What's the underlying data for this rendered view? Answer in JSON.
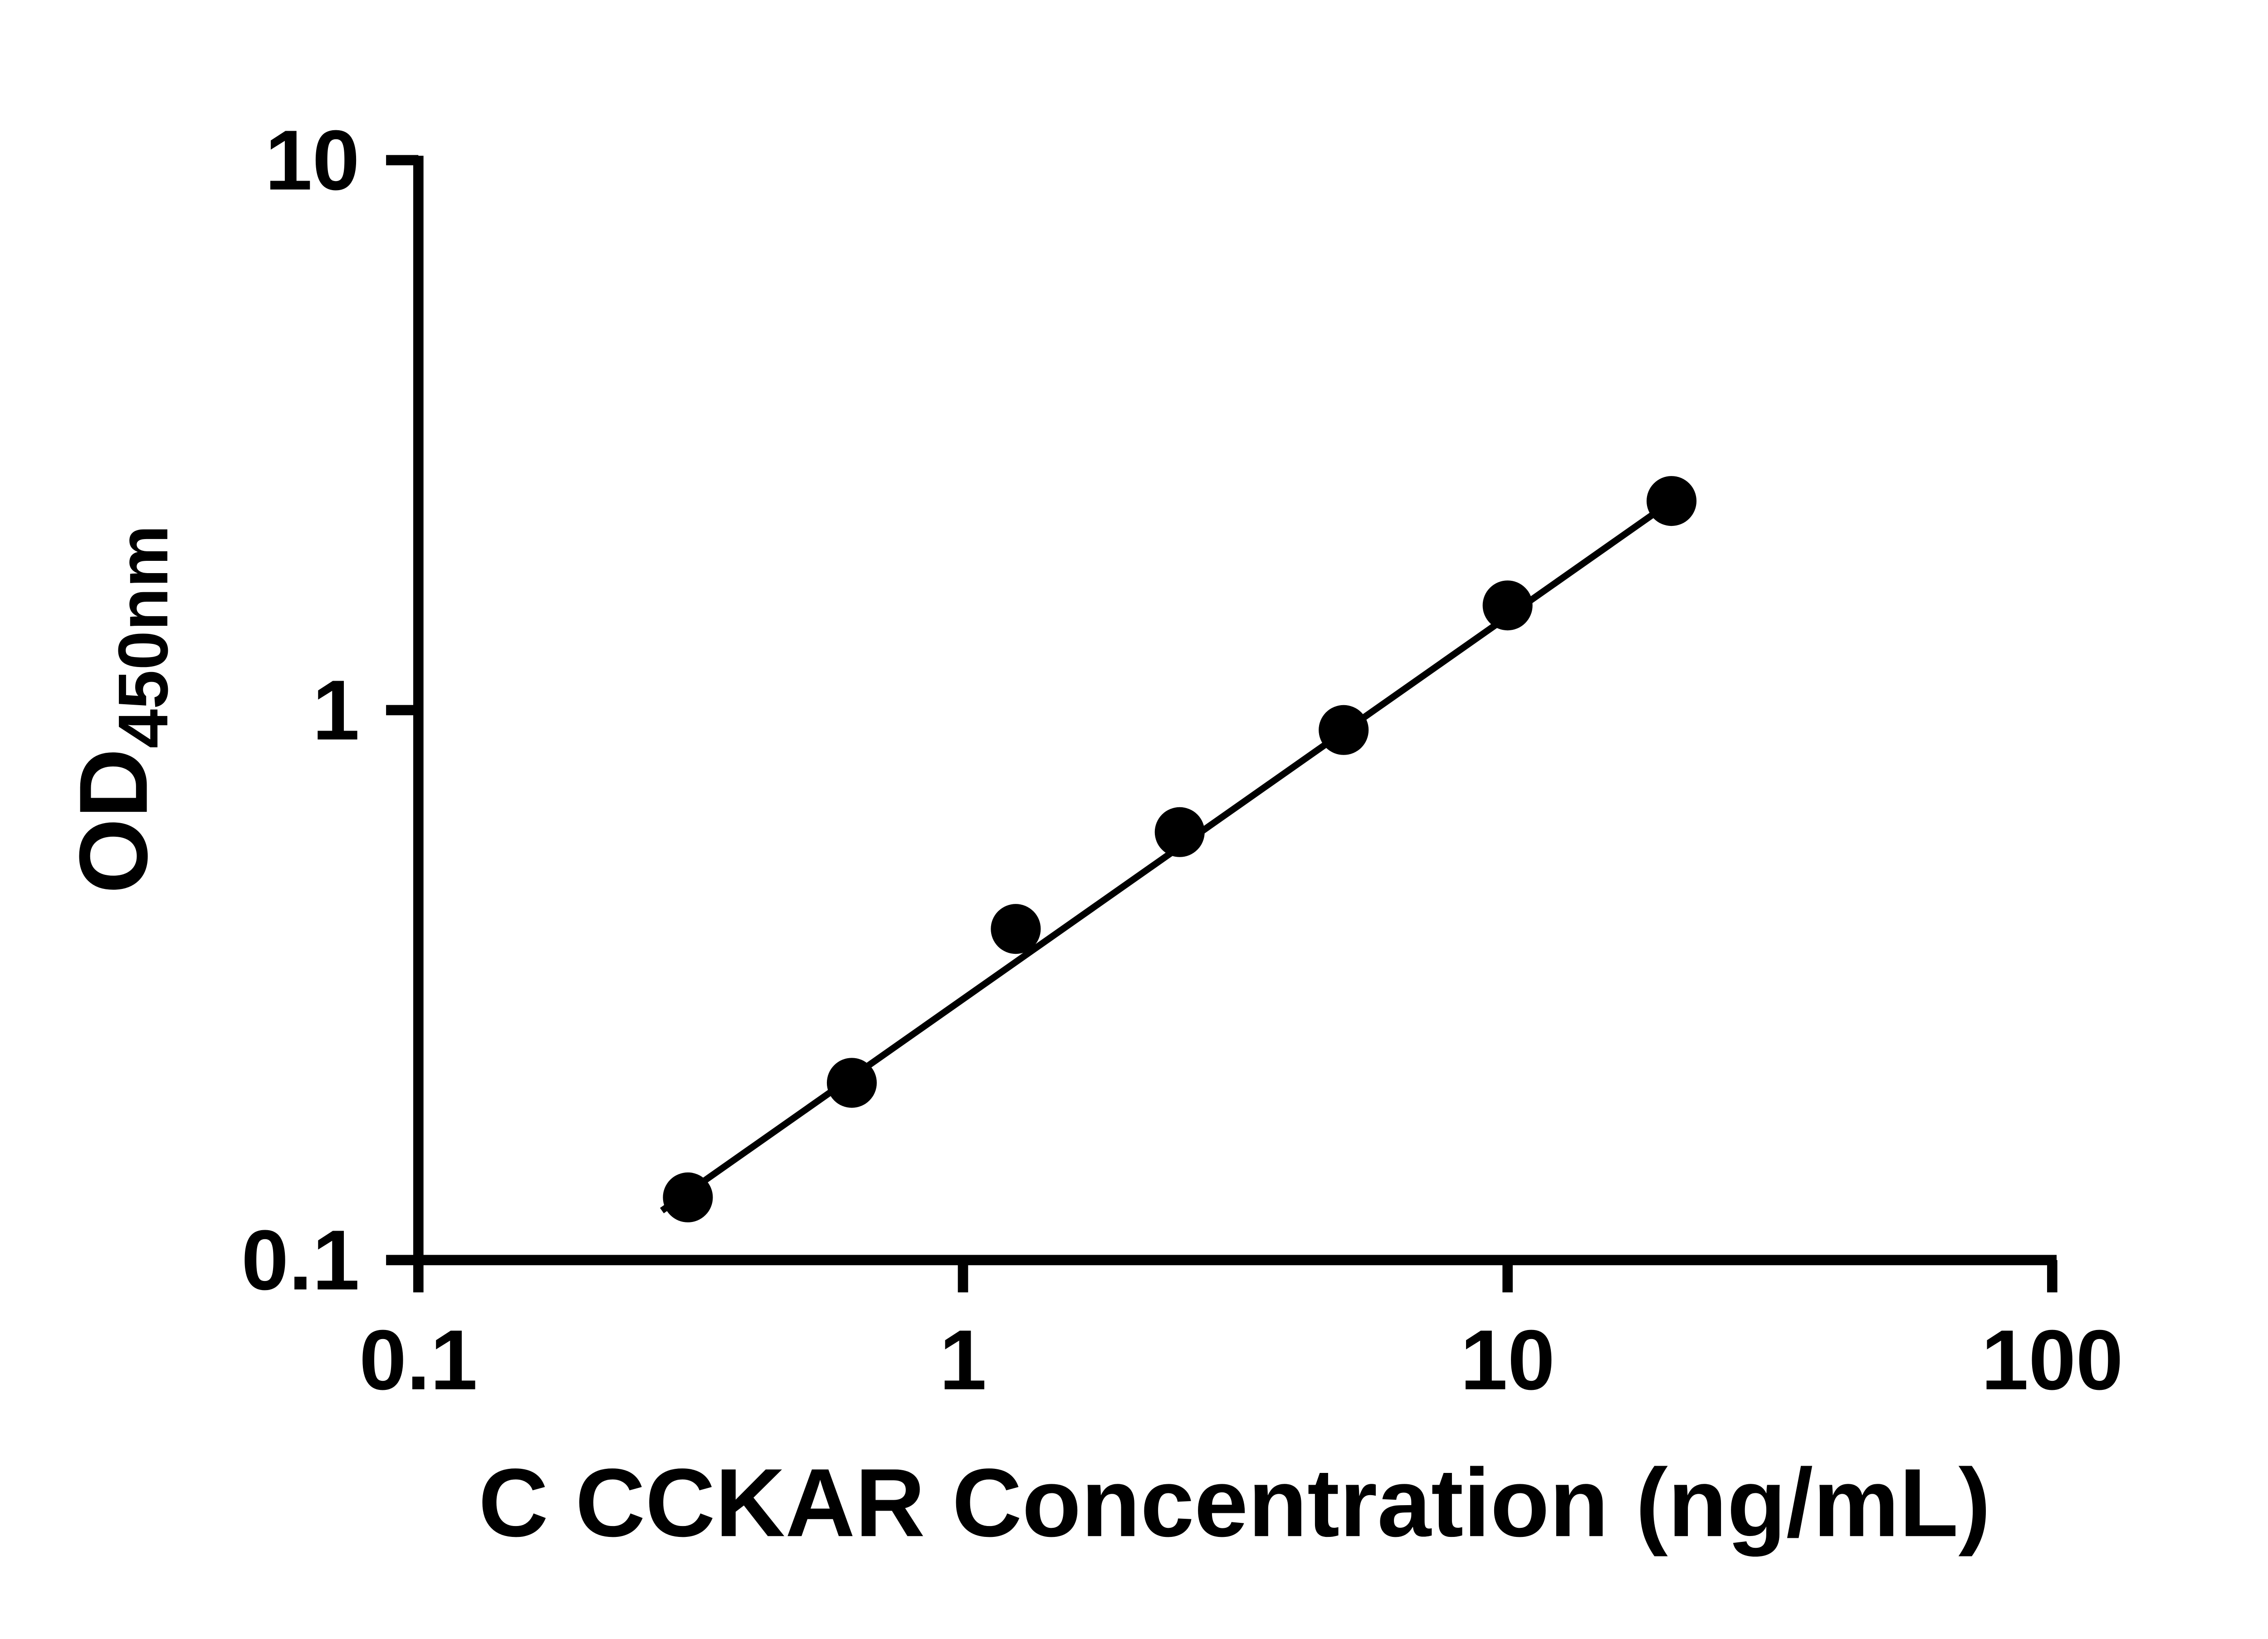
{
  "chart_data": {
    "type": "scatter",
    "title": "",
    "xlabel": "C CCKAR Concentration (ng/mL)",
    "ylabel_main": "OD",
    "ylabel_sub": "450nm",
    "x_scale": "log",
    "y_scale": "log",
    "xlim": [
      0.1,
      100
    ],
    "ylim": [
      0.1,
      10
    ],
    "grid": false,
    "legend": false,
    "x_ticks": [
      {
        "value": 0.1,
        "label": "0.1"
      },
      {
        "value": 1,
        "label": "1"
      },
      {
        "value": 10,
        "label": "10"
      },
      {
        "value": 100,
        "label": "100"
      }
    ],
    "y_ticks": [
      {
        "value": 0.1,
        "label": "0.1"
      },
      {
        "value": 1,
        "label": "1"
      },
      {
        "value": 10,
        "label": "10"
      }
    ],
    "points": [
      {
        "x": 0.3125,
        "y": 0.13
      },
      {
        "x": 0.625,
        "y": 0.21
      },
      {
        "x": 1.25,
        "y": 0.4
      },
      {
        "x": 2.5,
        "y": 0.6
      },
      {
        "x": 5,
        "y": 0.92
      },
      {
        "x": 10,
        "y": 1.55
      },
      {
        "x": 20,
        "y": 2.4
      }
    ],
    "trendline": {
      "x1": 0.28,
      "y1": 0.123,
      "x2": 21.5,
      "y2": 2.52
    },
    "marker_color": "#000000",
    "line_color": "#000000",
    "axis_color": "#000000"
  }
}
